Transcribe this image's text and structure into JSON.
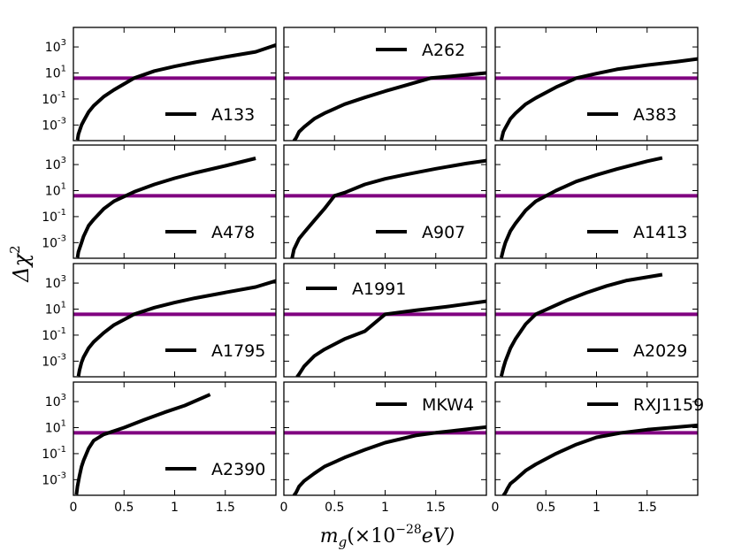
{
  "colors": {
    "curve": "#000000",
    "threshold": "#800080",
    "axes": "#000000",
    "background": "#ffffff"
  },
  "figure": {
    "xlabel_main": "m",
    "xlabel_sub": "g",
    "xlabel_rest": "(×10",
    "xlabel_exp": "−28",
    "xlabel_unit": "eV)",
    "ylabel_main": "Δχ",
    "ylabel_exp": "2"
  },
  "chart_data": {
    "type": "line",
    "grid": false,
    "rows": 4,
    "cols": 3,
    "shared_x": true,
    "shared_y": true,
    "xlim": [
      0,
      2.0
    ],
    "xticks": [
      0,
      0.5,
      1,
      1.5
    ],
    "xtick_labels": [
      "0",
      "0.5",
      "1",
      "1.5"
    ],
    "yscale": "log",
    "ylim_log10": [
      -4.2,
      4.5
    ],
    "yticks_log10": [
      3,
      1,
      -1,
      -3
    ],
    "ytick_bases": [
      "10",
      "10",
      "10",
      "10"
    ],
    "ytick_exps": [
      "3",
      "1",
      "-1",
      "-3"
    ],
    "threshold": 4.0,
    "panels": [
      {
        "name": "A133",
        "legend_loc": "lower-right",
        "x": [
          0.04,
          0.05,
          0.08,
          0.1,
          0.15,
          0.2,
          0.3,
          0.4,
          0.55,
          0.6,
          0.8,
          1.0,
          1.2,
          1.5,
          1.8,
          2.0
        ],
        "y": [
          7e-05,
          0.0002,
          0.001,
          0.002,
          0.01,
          0.03,
          0.15,
          0.5,
          2.4,
          4,
          14,
          32,
          65,
          170,
          420,
          1400
        ]
      },
      {
        "name": "A262",
        "legend_loc": "upper-right",
        "x": [
          0.1,
          0.12,
          0.15,
          0.2,
          0.3,
          0.4,
          0.6,
          0.8,
          1.0,
          1.2,
          1.45,
          1.7,
          2.0
        ],
        "y": [
          6e-05,
          0.0001,
          0.0003,
          0.0007,
          0.003,
          0.008,
          0.04,
          0.13,
          0.4,
          1.1,
          4,
          6,
          10
        ]
      },
      {
        "name": "A383",
        "legend_loc": "lower-right",
        "x": [
          0.06,
          0.08,
          0.1,
          0.15,
          0.2,
          0.3,
          0.4,
          0.6,
          0.8,
          1.0,
          1.2,
          1.5,
          1.8,
          2.0
        ],
        "y": [
          7e-05,
          0.0003,
          0.0006,
          0.003,
          0.008,
          0.04,
          0.12,
          0.8,
          4,
          9,
          19,
          40,
          75,
          120
        ]
      },
      {
        "name": "A478",
        "legend_loc": "lower-right",
        "x": [
          0.04,
          0.05,
          0.08,
          0.1,
          0.15,
          0.2,
          0.3,
          0.4,
          0.6,
          0.8,
          1.0,
          1.2,
          1.5,
          1.8
        ],
        "y": [
          7e-05,
          0.0002,
          0.001,
          0.003,
          0.02,
          0.06,
          0.4,
          1.5,
          8,
          30,
          90,
          230,
          800,
          3000
        ]
      },
      {
        "name": "A907",
        "legend_loc": "lower-right",
        "x": [
          0.08,
          0.1,
          0.15,
          0.2,
          0.3,
          0.4,
          0.5,
          0.6,
          0.8,
          1.0,
          1.2,
          1.5,
          1.8,
          2.0
        ],
        "y": [
          6e-05,
          0.0003,
          0.002,
          0.006,
          0.05,
          0.4,
          4,
          7,
          30,
          80,
          170,
          480,
          1200,
          2000
        ]
      },
      {
        "name": "A1413",
        "legend_loc": "lower-right",
        "x": [
          0.06,
          0.08,
          0.1,
          0.15,
          0.2,
          0.3,
          0.4,
          0.6,
          0.8,
          1.0,
          1.2,
          1.5,
          1.65
        ],
        "y": [
          7e-05,
          0.0003,
          0.001,
          0.008,
          0.03,
          0.3,
          1.5,
          10,
          50,
          160,
          450,
          1800,
          3200
        ]
      },
      {
        "name": "A1795",
        "legend_loc": "lower-right",
        "x": [
          0.05,
          0.06,
          0.08,
          0.1,
          0.15,
          0.2,
          0.3,
          0.4,
          0.55,
          0.6,
          0.8,
          1.0,
          1.2,
          1.5,
          1.8,
          2.0
        ],
        "y": [
          7e-05,
          0.0002,
          0.0008,
          0.002,
          0.01,
          0.03,
          0.15,
          0.6,
          2.5,
          4,
          13,
          32,
          70,
          190,
          500,
          1500
        ]
      },
      {
        "name": "A1991",
        "legend_loc": "upper-left",
        "x": [
          0.13,
          0.15,
          0.2,
          0.3,
          0.4,
          0.6,
          0.8,
          1.0,
          1.3,
          1.6,
          2.0
        ],
        "y": [
          6e-05,
          0.0001,
          0.0004,
          0.0025,
          0.008,
          0.05,
          0.2,
          4,
          8,
          15,
          40
        ]
      },
      {
        "name": "A2029",
        "legend_loc": "lower-right",
        "x": [
          0.06,
          0.08,
          0.1,
          0.15,
          0.2,
          0.3,
          0.4,
          0.5,
          0.7,
          0.9,
          1.1,
          1.3,
          1.65
        ],
        "y": [
          7e-05,
          0.0003,
          0.001,
          0.01,
          0.05,
          0.7,
          4,
          9,
          45,
          180,
          600,
          1600,
          4500
        ]
      },
      {
        "name": "A2390",
        "legend_loc": "lower-right",
        "x": [
          0.03,
          0.04,
          0.06,
          0.08,
          0.1,
          0.15,
          0.2,
          0.3,
          0.35,
          0.5,
          0.7,
          0.9,
          1.1,
          1.35
        ],
        "y": [
          7e-05,
          0.0003,
          0.002,
          0.01,
          0.03,
          0.25,
          1,
          3,
          4,
          10,
          40,
          150,
          500,
          3500
        ]
      },
      {
        "name": "MKW4",
        "legend_loc": "upper-right",
        "x": [
          0.1,
          0.12,
          0.15,
          0.2,
          0.3,
          0.4,
          0.6,
          0.8,
          1.0,
          1.3,
          1.5,
          1.7,
          2.0
        ],
        "y": [
          6e-05,
          0.0001,
          0.0003,
          0.0008,
          0.003,
          0.01,
          0.05,
          0.2,
          0.7,
          2.5,
          4,
          6,
          11
        ]
      },
      {
        "name": "RXJ1159",
        "legend_loc": "upper-right",
        "x": [
          0.08,
          0.1,
          0.12,
          0.15,
          0.2,
          0.3,
          0.4,
          0.6,
          0.8,
          1.0,
          1.25,
          1.5,
          1.8,
          2.0
        ],
        "y": [
          6e-05,
          0.0001,
          0.0002,
          0.0005,
          0.001,
          0.005,
          0.015,
          0.1,
          0.5,
          1.8,
          4,
          7,
          11,
          15
        ]
      }
    ]
  }
}
